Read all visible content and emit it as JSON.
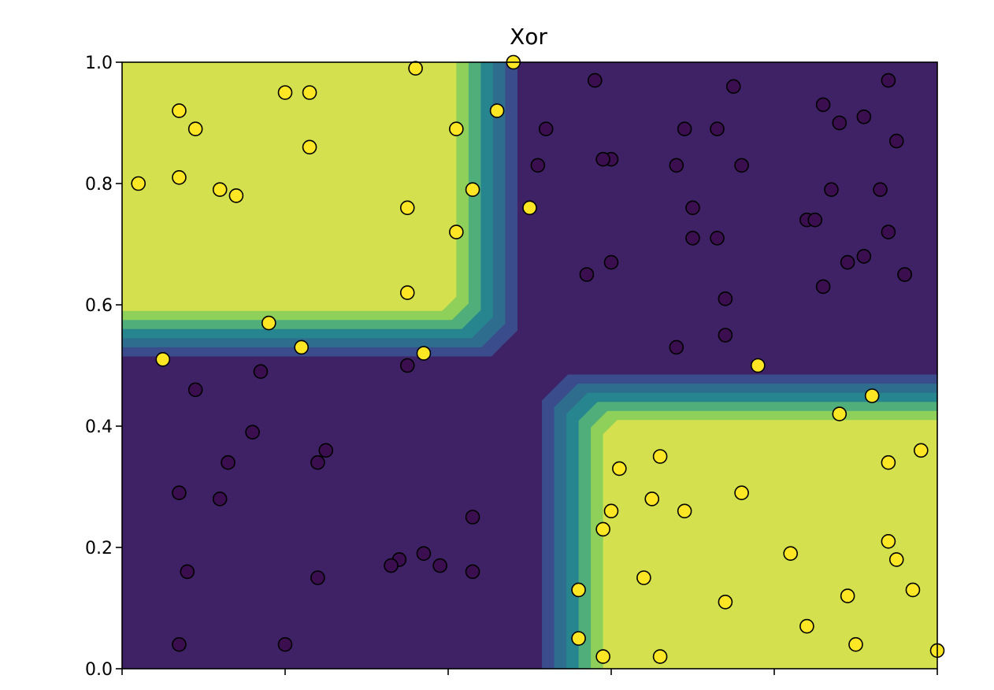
{
  "chart_data": {
    "type": "scatter",
    "title": "Xor",
    "xlabel": "",
    "ylabel": "",
    "xlim": [
      0,
      1
    ],
    "ylim": [
      0,
      1
    ],
    "xticks": [
      0,
      0.2,
      0.4,
      0.6,
      0.8,
      1.0
    ],
    "yticks": [
      0,
      0.2,
      0.4,
      0.6,
      0.8,
      1.0
    ],
    "ytick_labels": [
      "0.0",
      "0.2",
      "0.4",
      "0.6",
      "0.8",
      "1.0"
    ],
    "grid": false,
    "legend": "none",
    "colors": {
      "class_0": "#3b0f4f",
      "class_1": "#fde725",
      "background": "#3f2266",
      "contour_levels": [
        "#3f2266",
        "#3b4c8c",
        "#2f6d8e",
        "#26858e",
        "#4fae7a",
        "#8fd05a",
        "#d4e04e"
      ]
    },
    "background_regions": [
      {
        "x": [
          0,
          0.41
        ],
        "y": [
          0.59,
          1.0
        ],
        "class": 1
      },
      {
        "x": [
          0.59,
          1.0
        ],
        "y": [
          0,
          0.41
        ],
        "class": 1
      }
    ],
    "series": [
      {
        "class": 0,
        "points": [
          [
            0.58,
            0.97
          ],
          [
            0.75,
            0.96
          ],
          [
            0.94,
            0.97
          ],
          [
            0.86,
            0.93
          ],
          [
            0.91,
            0.91
          ],
          [
            0.73,
            0.89
          ],
          [
            0.69,
            0.89
          ],
          [
            0.52,
            0.89
          ],
          [
            0.88,
            0.9
          ],
          [
            0.95,
            0.87
          ],
          [
            0.51,
            0.83
          ],
          [
            0.6,
            0.84
          ],
          [
            0.59,
            0.84
          ],
          [
            0.68,
            0.83
          ],
          [
            0.76,
            0.83
          ],
          [
            0.87,
            0.79
          ],
          [
            0.93,
            0.79
          ],
          [
            0.7,
            0.76
          ],
          [
            0.84,
            0.74
          ],
          [
            0.85,
            0.74
          ],
          [
            0.7,
            0.71
          ],
          [
            0.73,
            0.71
          ],
          [
            0.94,
            0.72
          ],
          [
            0.6,
            0.67
          ],
          [
            0.57,
            0.65
          ],
          [
            0.89,
            0.67
          ],
          [
            0.91,
            0.68
          ],
          [
            0.96,
            0.65
          ],
          [
            0.96,
            0.65
          ],
          [
            0.86,
            0.63
          ],
          [
            0.74,
            0.61
          ],
          [
            0.74,
            0.55
          ],
          [
            0.68,
            0.53
          ],
          [
            0.35,
            0.5
          ],
          [
            0.17,
            0.49
          ],
          [
            0.09,
            0.46
          ],
          [
            0.16,
            0.39
          ],
          [
            0.25,
            0.36
          ],
          [
            0.13,
            0.34
          ],
          [
            0.24,
            0.34
          ],
          [
            0.07,
            0.29
          ],
          [
            0.12,
            0.28
          ],
          [
            0.43,
            0.25
          ],
          [
            0.08,
            0.16
          ],
          [
            0.24,
            0.15
          ],
          [
            0.34,
            0.18
          ],
          [
            0.37,
            0.19
          ],
          [
            0.33,
            0.17
          ],
          [
            0.39,
            0.17
          ],
          [
            0.43,
            0.16
          ],
          [
            0.07,
            0.04
          ],
          [
            0.2,
            0.04
          ]
        ]
      },
      {
        "class": 1,
        "points": [
          [
            0.36,
            0.99
          ],
          [
            0.48,
            1.0
          ],
          [
            0.2,
            0.95
          ],
          [
            0.23,
            0.95
          ],
          [
            0.07,
            0.92
          ],
          [
            0.46,
            0.92
          ],
          [
            0.09,
            0.89
          ],
          [
            0.41,
            0.89
          ],
          [
            0.23,
            0.86
          ],
          [
            0.02,
            0.8
          ],
          [
            0.07,
            0.81
          ],
          [
            0.12,
            0.79
          ],
          [
            0.14,
            0.78
          ],
          [
            0.43,
            0.79
          ],
          [
            0.35,
            0.76
          ],
          [
            0.5,
            0.76
          ],
          [
            0.41,
            0.72
          ],
          [
            0.35,
            0.62
          ],
          [
            0.18,
            0.57
          ],
          [
            0.22,
            0.53
          ],
          [
            0.37,
            0.52
          ],
          [
            0.05,
            0.51
          ],
          [
            0.78,
            0.5
          ],
          [
            0.92,
            0.45
          ],
          [
            0.88,
            0.42
          ],
          [
            0.98,
            0.36
          ],
          [
            0.66,
            0.35
          ],
          [
            0.94,
            0.34
          ],
          [
            0.61,
            0.33
          ],
          [
            0.76,
            0.29
          ],
          [
            0.65,
            0.28
          ],
          [
            0.6,
            0.26
          ],
          [
            0.69,
            0.26
          ],
          [
            0.59,
            0.23
          ],
          [
            0.94,
            0.21
          ],
          [
            0.95,
            0.18
          ],
          [
            0.82,
            0.19
          ],
          [
            0.64,
            0.15
          ],
          [
            0.56,
            0.13
          ],
          [
            0.97,
            0.13
          ],
          [
            0.89,
            0.12
          ],
          [
            0.74,
            0.11
          ],
          [
            0.84,
            0.07
          ],
          [
            0.9,
            0.04
          ],
          [
            0.56,
            0.05
          ],
          [
            0.59,
            0.02
          ],
          [
            0.66,
            0.02
          ],
          [
            1.0,
            0.03
          ]
        ]
      }
    ]
  }
}
